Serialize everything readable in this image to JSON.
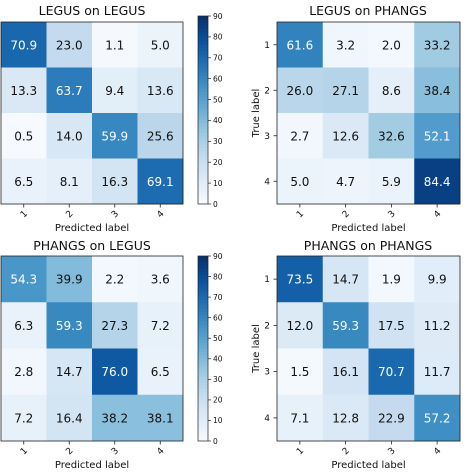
{
  "chart_data": [
    {
      "type": "heatmap",
      "title": "LEGUS on LEGUS",
      "xlabel": "Predicted label",
      "ylabel": "",
      "xticks": [
        "1",
        "2",
        "3",
        "4"
      ],
      "yticks": [],
      "values": [
        [
          70.9,
          23.0,
          1.1,
          5.0
        ],
        [
          13.3,
          63.7,
          9.4,
          13.6
        ],
        [
          0.5,
          14.0,
          59.9,
          25.6
        ],
        [
          6.5,
          8.1,
          16.3,
          69.1
        ]
      ],
      "value_labels": [
        [
          "70.9",
          "23.0",
          "1.1",
          "5.0"
        ],
        [
          "13.3",
          "63.7",
          "9.4",
          "13.6"
        ],
        [
          "0.5",
          "14.0",
          "59.9",
          "25.6"
        ],
        [
          "6.5",
          "8.1",
          "16.3",
          "69.1"
        ]
      ],
      "colormap": "Blues",
      "vmin": 0,
      "vmax": 90,
      "colorbar_ticks": [
        "0",
        "10",
        "20",
        "30",
        "40",
        "50",
        "60",
        "70",
        "80",
        "90"
      ]
    },
    {
      "type": "heatmap",
      "title": "LEGUS on PHANGS",
      "xlabel": "Predicted label",
      "ylabel": "True label",
      "xticks": [
        "1",
        "2",
        "3",
        "4"
      ],
      "yticks": [
        "1",
        "2",
        "3",
        "4"
      ],
      "values": [
        [
          61.6,
          3.2,
          2.0,
          33.2
        ],
        [
          26.0,
          27.1,
          8.6,
          38.4
        ],
        [
          2.7,
          12.6,
          32.6,
          52.1
        ],
        [
          5.0,
          4.7,
          5.9,
          84.4
        ]
      ],
      "value_labels": [
        [
          "61.6",
          "3.2",
          "2.0",
          "33.2"
        ],
        [
          "26.0",
          "27.1",
          "8.6",
          "38.4"
        ],
        [
          "2.7",
          "12.6",
          "32.6",
          "52.1"
        ],
        [
          "5.0",
          "4.7",
          "5.9",
          "84.4"
        ]
      ],
      "colormap": "Blues",
      "vmin": 0,
      "vmax": 90
    },
    {
      "type": "heatmap",
      "title": "PHANGS on LEGUS",
      "xlabel": "Predicted label",
      "ylabel": "",
      "xticks": [
        "1",
        "2",
        "3",
        "4"
      ],
      "yticks": [],
      "values": [
        [
          54.3,
          39.9,
          2.2,
          3.6
        ],
        [
          6.3,
          59.3,
          27.3,
          7.2
        ],
        [
          2.8,
          14.7,
          76.0,
          6.5
        ],
        [
          7.2,
          16.4,
          38.2,
          38.1
        ]
      ],
      "value_labels": [
        [
          "54.3",
          "39.9",
          "2.2",
          "3.6"
        ],
        [
          "6.3",
          "59.3",
          "27.3",
          "7.2"
        ],
        [
          "2.8",
          "14.7",
          "76.0",
          "6.5"
        ],
        [
          "7.2",
          "16.4",
          "38.2",
          "38.1"
        ]
      ],
      "colormap": "Blues",
      "vmin": 0,
      "vmax": 90,
      "colorbar_ticks": [
        "0",
        "10",
        "20",
        "30",
        "40",
        "50",
        "60",
        "70",
        "80",
        "90"
      ]
    },
    {
      "type": "heatmap",
      "title": "PHANGS on PHANGS",
      "xlabel": "Predicted label",
      "ylabel": "True label",
      "xticks": [
        "1",
        "2",
        "3",
        "4"
      ],
      "yticks": [
        "1",
        "2",
        "3",
        "4"
      ],
      "values": [
        [
          73.5,
          14.7,
          1.9,
          9.9
        ],
        [
          12.0,
          59.3,
          17.5,
          11.2
        ],
        [
          1.5,
          16.1,
          70.7,
          11.7
        ],
        [
          7.1,
          12.8,
          22.9,
          57.2
        ]
      ],
      "value_labels": [
        [
          "73.5",
          "14.7",
          "1.9",
          "9.9"
        ],
        [
          "12.0",
          "59.3",
          "17.5",
          "11.2"
        ],
        [
          "1.5",
          "16.1",
          "70.7",
          "11.7"
        ],
        [
          "7.1",
          "12.8",
          "22.9",
          "57.2"
        ]
      ],
      "colormap": "Blues",
      "vmin": 0,
      "vmax": 90
    }
  ]
}
